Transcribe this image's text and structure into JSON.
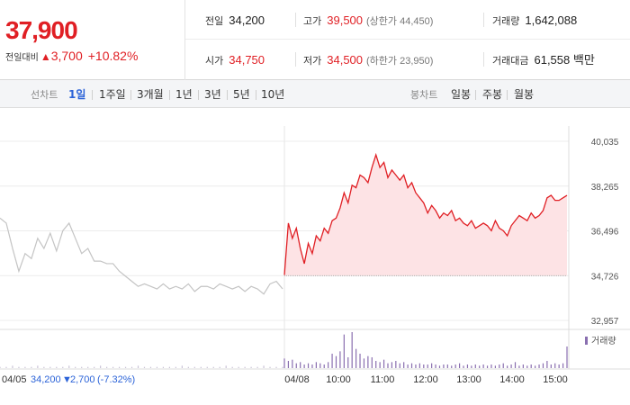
{
  "quote": {
    "price": "37,900",
    "change_label": "전일대비",
    "change_arrow": "▲",
    "change_amount": "3,700",
    "change_percent": "+10.82%"
  },
  "stats": {
    "prev_close": {
      "label": "전일",
      "value": "34,200"
    },
    "high": {
      "label": "고가",
      "value": "39,500",
      "sub": "(상한가 44,450)"
    },
    "volume": {
      "label": "거래량",
      "value": "1,642,088"
    },
    "open": {
      "label": "시가",
      "value": "34,750"
    },
    "low": {
      "label": "저가",
      "value": "34,500",
      "sub": "(하한가 23,950)"
    },
    "amount": {
      "label": "거래대금",
      "value": "61,558 백만"
    }
  },
  "period_tabs": {
    "label": "선차트",
    "items": [
      "1일",
      "1주일",
      "3개월",
      "1년",
      "3년",
      "5년",
      "10년"
    ],
    "active": 0
  },
  "candle_tabs": {
    "label": "봉차트",
    "items": [
      "일봉",
      "주봉",
      "월봉"
    ]
  },
  "colors": {
    "up": "#e01f24",
    "fill": "#fde3e5",
    "prev": "#c4c4c4",
    "volume": "#8a6fb0",
    "active_tab": "#2b63d8"
  },
  "chart_data": {
    "type": "line",
    "y_ticks": [
      "40,035",
      "38,265",
      "36,496",
      "34,726",
      "32,957"
    ],
    "ylim": [
      32957,
      40035
    ],
    "baseline": 34726,
    "x_labels": [
      "04/08",
      "10:00",
      "11:00",
      "12:00",
      "13:00",
      "14:00",
      "15:00"
    ],
    "prev_day": {
      "date_label": "04/05",
      "close": "34,200",
      "arrow": "▼",
      "change": "2,700",
      "change_pct": "(-7.32%)",
      "values": [
        37000,
        36800,
        35800,
        34900,
        35600,
        35400,
        36200,
        35800,
        36400,
        35700,
        36500,
        36800,
        36200,
        35600,
        35800,
        35300,
        35300,
        35200,
        35200,
        34900,
        34700,
        34500,
        34300,
        34400,
        34300,
        34200,
        34400,
        34200,
        34300,
        34200,
        34400,
        34100,
        34300,
        34300,
        34200,
        34400,
        34300,
        34200,
        34300,
        34100,
        34300,
        34200,
        34000,
        34400,
        34500,
        34200
      ]
    },
    "today": {
      "values": [
        34750,
        36800,
        36200,
        36600,
        35800,
        35200,
        36000,
        35600,
        36300,
        36100,
        36600,
        36400,
        36900,
        37000,
        37400,
        38000,
        37600,
        38300,
        38200,
        38700,
        38600,
        38400,
        39000,
        39500,
        39000,
        39200,
        38600,
        38900,
        38700,
        38500,
        38700,
        38200,
        38400,
        38000,
        37800,
        37600,
        37200,
        37500,
        37300,
        37000,
        37200,
        37100,
        37300,
        36900,
        37000,
        36800,
        36700,
        36900,
        36600,
        36700,
        36800,
        36700,
        36500,
        36900,
        36600,
        36500,
        36300,
        36700,
        36900,
        37100,
        37000,
        36900,
        37200,
        37000,
        37100,
        37300,
        37800,
        37900,
        37700,
        37700,
        37800,
        37900
      ]
    },
    "volume_label": "거래량",
    "volume": {
      "prev_day": [
        1,
        1,
        2,
        1,
        1,
        1,
        2,
        1,
        1,
        1,
        1,
        2,
        1,
        1,
        1,
        1,
        2,
        1,
        1,
        1,
        1,
        1,
        2,
        1,
        1,
        1,
        1,
        1,
        1,
        2,
        1,
        1,
        1,
        1,
        1,
        1,
        2,
        1,
        1,
        1,
        1,
        1,
        2,
        1,
        1,
        1
      ],
      "today": [
        8,
        6,
        7,
        4,
        5,
        3,
        4,
        3,
        5,
        4,
        3,
        5,
        12,
        10,
        14,
        28,
        9,
        30,
        16,
        12,
        8,
        10,
        9,
        6,
        5,
        7,
        4,
        5,
        6,
        4,
        5,
        3,
        4,
        3,
        4,
        3,
        3,
        4,
        3,
        2,
        3,
        3,
        2,
        3,
        4,
        2,
        3,
        2,
        3,
        2,
        3,
        2,
        3,
        2,
        3,
        4,
        2,
        3,
        5,
        2,
        3,
        2,
        3,
        2,
        3,
        4,
        6,
        3,
        4,
        3,
        4,
        18
      ]
    }
  }
}
